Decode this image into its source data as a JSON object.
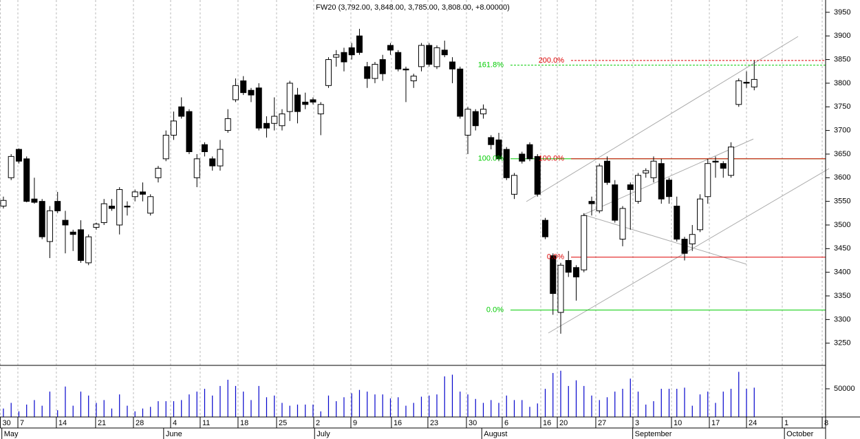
{
  "chart_data": [
    {
      "type": "candlestick",
      "title": "FW20 (3,792.00, 3,848.00, 3,785.00, 3,808.00, +8.00000)",
      "x": [
        0,
        1,
        2,
        3,
        4,
        5,
        6,
        7,
        8,
        9,
        10,
        11,
        12,
        13,
        14,
        15,
        16,
        17,
        18,
        19,
        20,
        21,
        22,
        23,
        24,
        25,
        26,
        27,
        28,
        29,
        30,
        31,
        32,
        33,
        34,
        35,
        36,
        37,
        38,
        39,
        40,
        41,
        42,
        43,
        44,
        45,
        46,
        47,
        48,
        49,
        50,
        51,
        52,
        53,
        54,
        55,
        56,
        57,
        58,
        59,
        60,
        61,
        62,
        63,
        64,
        65,
        66,
        67,
        68,
        69,
        70,
        71,
        72,
        73,
        74,
        75,
        76,
        77,
        78,
        79,
        80,
        81,
        82,
        83,
        84,
        85,
        86,
        87,
        88,
        89,
        90,
        91,
        92,
        93,
        94,
        95,
        96,
        97
      ],
      "open": [
        3540,
        3600,
        3660,
        3640,
        3555,
        3550,
        3465,
        3550,
        3510,
        3485,
        3490,
        3420,
        3495,
        3505,
        3540,
        3500,
        3540,
        3560,
        3570,
        3525,
        3600,
        3640,
        3690,
        3750,
        3740,
        3600,
        3670,
        3640,
        3625,
        3700,
        3765,
        3805,
        3785,
        3790,
        3715,
        3715,
        3710,
        3740,
        3775,
        3760,
        3765,
        3735,
        3795,
        3855,
        3865,
        3875,
        3900,
        3835,
        3810,
        3850,
        3880,
        3865,
        3830,
        3805,
        3835,
        3880,
        3835,
        3870,
        3845,
        3830,
        3690,
        3740,
        3735,
        3685,
        3680,
        3660,
        3565,
        3650,
        3670,
        3645,
        3510,
        3435,
        3315,
        3425,
        3410,
        3405,
        3550,
        3530,
        3635,
        3585,
        3470,
        3585,
        3550,
        3610,
        3600,
        3630,
        3595,
        3540,
        3470,
        3460,
        3490,
        3560,
        3635,
        3630,
        3605,
        3755,
        3802,
        3792
      ],
      "high": [
        3560,
        3650,
        3662,
        3645,
        3600,
        3555,
        3540,
        3570,
        3530,
        3490,
        3510,
        3480,
        3505,
        3555,
        3555,
        3580,
        3550,
        3575,
        3590,
        3565,
        3625,
        3700,
        3740,
        3770,
        3745,
        3650,
        3675,
        3645,
        3680,
        3745,
        3810,
        3815,
        3790,
        3800,
        3730,
        3770,
        3745,
        3805,
        3790,
        3780,
        3770,
        3760,
        3855,
        3870,
        3875,
        3885,
        3915,
        3845,
        3845,
        3860,
        3885,
        3870,
        3835,
        3820,
        3885,
        3885,
        3880,
        3890,
        3855,
        3835,
        3750,
        3745,
        3755,
        3690,
        3695,
        3665,
        3610,
        3655,
        3675,
        3650,
        3515,
        3440,
        3420,
        3445,
        3415,
        3525,
        3560,
        3630,
        3645,
        3595,
        3540,
        3590,
        3610,
        3620,
        3645,
        3640,
        3600,
        3560,
        3475,
        3500,
        3565,
        3640,
        3645,
        3635,
        3675,
        3810,
        3825,
        3848
      ],
      "low": [
        3535,
        3595,
        3630,
        3548,
        3545,
        3470,
        3430,
        3525,
        3440,
        3445,
        3420,
        3415,
        3490,
        3500,
        3530,
        3480,
        3520,
        3550,
        3550,
        3520,
        3590,
        3635,
        3680,
        3725,
        3650,
        3580,
        3645,
        3615,
        3615,
        3695,
        3760,
        3775,
        3760,
        3700,
        3685,
        3700,
        3700,
        3720,
        3715,
        3745,
        3755,
        3690,
        3790,
        3835,
        3825,
        3850,
        3860,
        3790,
        3800,
        3805,
        3860,
        3825,
        3760,
        3790,
        3825,
        3835,
        3830,
        3855,
        3800,
        3725,
        3650,
        3700,
        3725,
        3660,
        3635,
        3595,
        3555,
        3630,
        3635,
        3560,
        3470,
        3310,
        3270,
        3390,
        3340,
        3400,
        3520,
        3525,
        3585,
        3505,
        3455,
        3490,
        3545,
        3600,
        3590,
        3545,
        3545,
        3465,
        3425,
        3445,
        3485,
        3545,
        3600,
        3600,
        3600,
        3750,
        3790,
        3785
      ],
      "close": [
        3552,
        3645,
        3635,
        3550,
        3548,
        3475,
        3530,
        3530,
        3500,
        3480,
        3425,
        3475,
        3502,
        3545,
        3535,
        3575,
        3538,
        3570,
        3565,
        3560,
        3620,
        3690,
        3720,
        3730,
        3655,
        3640,
        3655,
        3625,
        3660,
        3725,
        3795,
        3780,
        3775,
        3705,
        3705,
        3730,
        3735,
        3800,
        3740,
        3755,
        3760,
        3755,
        3850,
        3860,
        3845,
        3860,
        3865,
        3810,
        3840,
        3820,
        3870,
        3830,
        3828,
        3815,
        3880,
        3840,
        3875,
        3860,
        3830,
        3730,
        3745,
        3710,
        3745,
        3670,
        3640,
        3600,
        3605,
        3635,
        3640,
        3565,
        3475,
        3355,
        3415,
        3400,
        3390,
        3520,
        3545,
        3625,
        3590,
        3510,
        3535,
        3575,
        3605,
        3615,
        3635,
        3555,
        3560,
        3470,
        3440,
        3480,
        3555,
        3630,
        3633,
        3620,
        3665,
        3805,
        3800,
        3808
      ],
      "up_color": "#ffffff",
      "down_color": "#000000",
      "xlim": [
        -0.44,
        106.22
      ],
      "xticks": [
        {
          "value": -0.4,
          "label": "30"
        },
        {
          "value": 1.87,
          "label": "7"
        },
        {
          "value": 6.84,
          "label": "14"
        },
        {
          "value": 11.91,
          "label": "21"
        },
        {
          "value": 16.8,
          "label": "28"
        },
        {
          "value": 21.6,
          "label": "4"
        },
        {
          "value": 25.42,
          "label": "11"
        },
        {
          "value": 30.31,
          "label": "18"
        },
        {
          "value": 35.29,
          "label": "25"
        },
        {
          "value": 40.09,
          "label": "2"
        },
        {
          "value": 44.89,
          "label": "9"
        },
        {
          "value": 50.13,
          "label": "16"
        },
        {
          "value": 54.84,
          "label": "23"
        },
        {
          "value": 59.82,
          "label": "30"
        },
        {
          "value": 64.44,
          "label": "6"
        },
        {
          "value": 69.42,
          "label": "16"
        },
        {
          "value": 71.56,
          "label": "20"
        },
        {
          "value": 76.53,
          "label": "27"
        },
        {
          "value": 81.33,
          "label": "3"
        },
        {
          "value": 86.31,
          "label": "10"
        },
        {
          "value": 91.2,
          "label": "17"
        },
        {
          "value": 96.0,
          "label": "24"
        },
        {
          "value": 100.62,
          "label": "1"
        },
        {
          "value": 105.78,
          "label": "8"
        }
      ],
      "month_ticks": [
        {
          "value": -0.2,
          "label": "May"
        },
        {
          "value": 20.7,
          "label": "June"
        },
        {
          "value": 40.2,
          "label": "July"
        },
        {
          "value": 61.8,
          "label": "August"
        },
        {
          "value": 81.3,
          "label": "September"
        },
        {
          "value": 100.9,
          "label": "October"
        }
      ],
      "ylim": [
        3203,
        3976
      ],
      "yticks": [
        3250,
        3300,
        3350,
        3400,
        3450,
        3500,
        3550,
        3600,
        3650,
        3700,
        3750,
        3800,
        3850,
        3900,
        3950
      ],
      "grid": true,
      "levels": [
        {
          "label": "0.0%",
          "value": 3320,
          "color": "#00cc00",
          "dashed": false
        },
        {
          "label": "100.0%",
          "value": 3640,
          "color": "#00cc00",
          "dashed": false
        },
        {
          "label": "161.8%",
          "value": 3838,
          "color": "#00cc00",
          "dashed": true
        },
        {
          "label": "0.0%",
          "value": 3432,
          "color": "#dd0000",
          "dashed": false
        },
        {
          "label": "100.0%",
          "value": 3640,
          "color": "#dd0000",
          "dashed": false
        },
        {
          "label": "200.0%",
          "value": 3848,
          "color": "#dd0000",
          "dashed": true
        }
      ]
    },
    {
      "type": "bar",
      "color": "#0000cc",
      "values": [
        15000,
        25000,
        10000,
        22000,
        30000,
        20000,
        45000,
        12000,
        54000,
        20000,
        45000,
        38000,
        25000,
        30000,
        15000,
        40000,
        20000,
        10000,
        15000,
        18000,
        28000,
        28000,
        28000,
        30000,
        40000,
        45000,
        50000,
        38000,
        55000,
        66000,
        55000,
        45000,
        30000,
        55000,
        35000,
        38000,
        25000,
        20000,
        22000,
        22000,
        22000,
        10000,
        38000,
        28000,
        35000,
        42000,
        48000,
        45000,
        40000,
        40000,
        33000,
        35000,
        20000,
        25000,
        36000,
        38000,
        40000,
        72000,
        75000,
        45000,
        40000,
        32000,
        25000,
        30000,
        25000,
        38000,
        30000,
        30000,
        18000,
        24000,
        50000,
        78000,
        82000,
        55000,
        65000,
        55000,
        38000,
        30000,
        35000,
        45000,
        50000,
        68000,
        45000,
        22000,
        28000,
        50000,
        50000,
        50000,
        52000,
        20000,
        40000,
        45000,
        25000,
        45000,
        50000,
        80000,
        50000,
        52000
      ],
      "ylim": [
        0,
        91500
      ],
      "yticks": [
        50000
      ]
    }
  ]
}
